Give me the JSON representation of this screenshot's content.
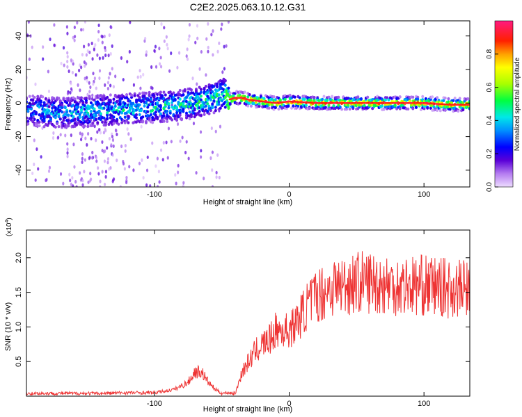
{
  "title": "C2E2.2025.063.10.12.G31",
  "chart_data": [
    {
      "type": "heatmap",
      "xlabel": "Height of straight line (km)",
      "ylabel": "Frequency (Hz)",
      "xlim": [
        -195,
        134
      ],
      "ylim": [
        -50,
        49
      ],
      "xticks": [
        -100,
        0,
        100
      ],
      "yticks": [
        -40,
        -20,
        0,
        20,
        40
      ],
      "colorbar": {
        "label": "Normalized spectral amplitude",
        "range": [
          0.0,
          1.0
        ],
        "ticks": [
          "0.0",
          "0.2",
          "0.4",
          "0.6",
          "0.8"
        ]
      },
      "ridge": {
        "x": [
          -195,
          -170,
          -150,
          -130,
          -110,
          -90,
          -70,
          -55,
          -48,
          -45,
          -40,
          -35,
          -30,
          -20,
          -10,
          0,
          20,
          40,
          60,
          80,
          100,
          120,
          134
        ],
        "freq": [
          -4,
          -6,
          -5,
          -4,
          -3,
          -2,
          0,
          3,
          6,
          2,
          3,
          3,
          2,
          1,
          0,
          1,
          0,
          0,
          0,
          0,
          0,
          -1,
          -1
        ],
        "amplitude": [
          0.3,
          0.3,
          0.35,
          0.35,
          0.35,
          0.38,
          0.4,
          0.45,
          0.4,
          0.95,
          0.95,
          0.95,
          0.95,
          0.95,
          0.95,
          0.95,
          0.95,
          0.95,
          0.95,
          0.95,
          0.95,
          0.95,
          0.95
        ]
      }
    },
    {
      "type": "line",
      "xlabel": "Height of straight line (km)",
      "ylabel": "SNR (10 * v/v)",
      "multiplier_label": "(x10",
      "multiplier_exp": "4",
      "xlim": [
        -195,
        134
      ],
      "ylim": [
        0,
        2.4
      ],
      "xticks": [
        -100,
        0,
        100
      ],
      "yticks": [
        "0.5",
        "1.0",
        "1.5",
        "2.0"
      ],
      "series": [
        {
          "color": "#ee3333",
          "x": [
            -195,
            -180,
            -160,
            -140,
            -120,
            -110,
            -100,
            -90,
            -85,
            -80,
            -75,
            -70,
            -65,
            -60,
            -55,
            -50,
            -45,
            -40,
            -35,
            -30,
            -25,
            -20,
            -15,
            -10,
            -5,
            0,
            5,
            10,
            15,
            20,
            25,
            30,
            35,
            40,
            50,
            60,
            70,
            80,
            90,
            100,
            110,
            120,
            134
          ],
          "y": [
            0.04,
            0.04,
            0.04,
            0.04,
            0.05,
            0.05,
            0.05,
            0.08,
            0.1,
            0.15,
            0.2,
            0.35,
            0.35,
            0.2,
            0.1,
            0.04,
            0.05,
            0.04,
            0.35,
            0.5,
            0.65,
            0.75,
            0.8,
            0.95,
            0.95,
            0.95,
            1.05,
            1.2,
            1.35,
            1.45,
            1.5,
            1.55,
            1.6,
            1.6,
            1.65,
            1.65,
            1.62,
            1.6,
            1.6,
            1.6,
            1.58,
            1.55,
            1.55
          ]
        }
      ]
    }
  ]
}
